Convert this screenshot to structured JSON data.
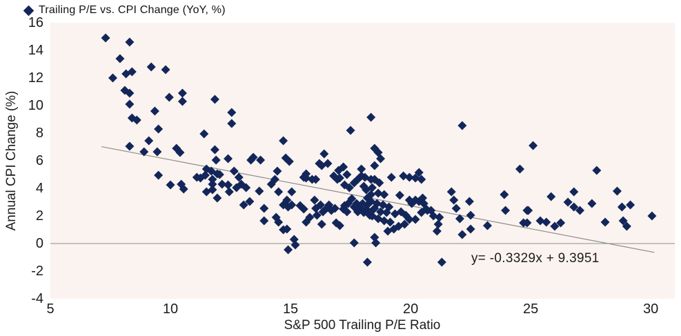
{
  "colors": {
    "marker": "#13265a",
    "plot_bg": "#faf3ef",
    "page_bg": "#ffffff",
    "line": "#8c8c8c",
    "text": "#1c1c1c"
  },
  "chart_data": {
    "type": "scatter",
    "title": "Trailing P/E vs. CPI Change (YoY, %)",
    "xlabel": "S&P 500 Trailing P/E Ratio",
    "ylabel": "Annual CPI Change (%)",
    "xlim": [
      5,
      31
    ],
    "ylim": [
      -4,
      16
    ],
    "xticks": [
      5,
      10,
      15,
      20,
      25,
      30
    ],
    "yticks": [
      16,
      14,
      12,
      10,
      8,
      6,
      4,
      2,
      0,
      -2,
      -4
    ],
    "grid": "zero-line-only",
    "legend_position": "top-left",
    "trendline": {
      "slope": -0.3329,
      "intercept": 9.3951,
      "x_start": 7.13,
      "x_end": 30.15,
      "label": "y= -0.3329x + 9.3951"
    },
    "points": [
      [
        7.3,
        14.9
      ],
      [
        8.3,
        14.6
      ],
      [
        7.9,
        13.4
      ],
      [
        9.2,
        12.8
      ],
      [
        9.8,
        12.6
      ],
      [
        8.15,
        12.3
      ],
      [
        8.4,
        12.45
      ],
      [
        7.6,
        12.0
      ],
      [
        8.1,
        11.1
      ],
      [
        8.3,
        10.9
      ],
      [
        9.95,
        10.6
      ],
      [
        10.5,
        10.9
      ],
      [
        10.5,
        10.3
      ],
      [
        8.3,
        10.1
      ],
      [
        9.35,
        9.6
      ],
      [
        8.4,
        9.1
      ],
      [
        8.6,
        8.95
      ],
      [
        9.5,
        8.3
      ],
      [
        11.4,
        7.95
      ],
      [
        9.1,
        7.45
      ],
      [
        8.3,
        7.05
      ],
      [
        8.9,
        6.65
      ],
      [
        9.45,
        6.65
      ],
      [
        10.25,
        6.9
      ],
      [
        10.4,
        6.6
      ],
      [
        11.85,
        6.8
      ],
      [
        11.9,
        6.05
      ],
      [
        9.5,
        4.95
      ],
      [
        10.0,
        4.25
      ],
      [
        10.45,
        4.3
      ],
      [
        10.55,
        3.95
      ],
      [
        11.1,
        4.8
      ],
      [
        11.45,
        4.95
      ],
      [
        11.5,
        3.75
      ],
      [
        11.75,
        4.3
      ],
      [
        11.25,
        4.75
      ],
      [
        11.5,
        5.4
      ],
      [
        12.05,
        5.0
      ],
      [
        12.65,
        5.25
      ],
      [
        12.85,
        4.8
      ],
      [
        11.85,
        10.45
      ],
      [
        12.55,
        9.5
      ],
      [
        12.55,
        8.7
      ],
      [
        14.7,
        7.45
      ],
      [
        17.5,
        8.2
      ],
      [
        18.35,
        9.15
      ],
      [
        12.4,
        6.15
      ],
      [
        13.35,
        6.05
      ],
      [
        13.45,
        6.25
      ],
      [
        13.75,
        6.05
      ],
      [
        14.8,
        6.2
      ],
      [
        14.95,
        5.95
      ],
      [
        16.4,
        6.5
      ],
      [
        16.2,
        5.8
      ],
      [
        16.55,
        5.8
      ],
      [
        16.3,
        5.65
      ],
      [
        17.2,
        5.55
      ],
      [
        18.5,
        6.9
      ],
      [
        18.65,
        6.6
      ],
      [
        18.75,
        6.15
      ],
      [
        11.7,
        5.25
      ],
      [
        11.95,
        5.05
      ],
      [
        11.75,
        4.65
      ],
      [
        12.15,
        4.3
      ],
      [
        12.4,
        4.25
      ],
      [
        12.45,
        3.75
      ],
      [
        11.75,
        3.9
      ],
      [
        11.95,
        3.3
      ],
      [
        12.75,
        4.05
      ],
      [
        12.95,
        4.3
      ],
      [
        13.15,
        4.05
      ],
      [
        13.05,
        2.8
      ],
      [
        13.3,
        3.05
      ],
      [
        13.7,
        3.8
      ],
      [
        13.9,
        2.55
      ],
      [
        13.9,
        1.65
      ],
      [
        14.2,
        4.3
      ],
      [
        14.35,
        4.65
      ],
      [
        14.45,
        5.25
      ],
      [
        14.5,
        3.75
      ],
      [
        14.7,
        2.8
      ],
      [
        14.85,
        3.15
      ],
      [
        14.9,
        2.65
      ],
      [
        15.05,
        3.75
      ],
      [
        15.05,
        2.8
      ],
      [
        14.4,
        1.9
      ],
      [
        14.5,
        1.55
      ],
      [
        14.7,
        1.0
      ],
      [
        14.85,
        1.05
      ],
      [
        15.15,
        0.3
      ],
      [
        14.9,
        -0.45
      ],
      [
        15.2,
        -0.1
      ],
      [
        15.55,
        4.8
      ],
      [
        15.65,
        5.05
      ],
      [
        15.4,
        2.75
      ],
      [
        15.55,
        2.5
      ],
      [
        15.65,
        1.55
      ],
      [
        15.8,
        1.9
      ],
      [
        15.9,
        4.65
      ],
      [
        16.0,
        3.15
      ],
      [
        16.05,
        2.55
      ],
      [
        16.1,
        2.05
      ],
      [
        16.25,
        2.8
      ],
      [
        16.3,
        1.4
      ],
      [
        16.35,
        2.3
      ],
      [
        16.5,
        2.55
      ],
      [
        16.6,
        2.8
      ],
      [
        16.7,
        2.4
      ],
      [
        16.85,
        2.55
      ],
      [
        16.9,
        1.5
      ],
      [
        17.05,
        1.3
      ],
      [
        17.2,
        2.5
      ],
      [
        17.25,
        2.75
      ],
      [
        17.35,
        2.3
      ],
      [
        17.4,
        2.9
      ],
      [
        17.55,
        3.25
      ],
      [
        17.65,
        2.65
      ],
      [
        17.75,
        2.9
      ],
      [
        17.8,
        2.3
      ],
      [
        17.9,
        2.55
      ],
      [
        18.0,
        2.9
      ],
      [
        18.05,
        2.25
      ],
      [
        18.15,
        2.5
      ],
      [
        18.2,
        2.8
      ],
      [
        18.3,
        2.05
      ],
      [
        18.35,
        2.3
      ],
      [
        17.65,
        0.05
      ],
      [
        18.2,
        -1.35
      ],
      [
        16.8,
        4.9
      ],
      [
        16.95,
        4.65
      ],
      [
        17.0,
        5.3
      ],
      [
        17.35,
        5.0
      ],
      [
        17.25,
        4.25
      ],
      [
        17.45,
        4.05
      ],
      [
        17.65,
        4.4
      ],
      [
        17.8,
        4.65
      ],
      [
        17.95,
        4.9
      ],
      [
        18.05,
        4.15
      ],
      [
        18.15,
        3.9
      ],
      [
        18.2,
        3.3
      ],
      [
        18.35,
        3.55
      ],
      [
        16.05,
        4.65
      ],
      [
        17.05,
        4.75
      ],
      [
        17.95,
        5.4
      ],
      [
        18.1,
        4.8
      ],
      [
        18.35,
        4.65
      ],
      [
        15.65,
        4.75
      ],
      [
        18.5,
        5.65
      ],
      [
        18.5,
        4.65
      ],
      [
        18.7,
        4.4
      ],
      [
        19.2,
        4.8
      ],
      [
        19.7,
        4.9
      ],
      [
        20.35,
        5.15
      ],
      [
        20.45,
        4.65
      ],
      [
        19.95,
        4.8
      ],
      [
        20.2,
        4.75
      ],
      [
        18.4,
        4.05
      ],
      [
        18.65,
        3.65
      ],
      [
        18.9,
        3.55
      ],
      [
        18.35,
        3.05
      ],
      [
        18.6,
        2.9
      ],
      [
        18.85,
        2.8
      ],
      [
        19.1,
        2.65
      ],
      [
        18.5,
        2.55
      ],
      [
        18.75,
        2.3
      ],
      [
        19.0,
        2.25
      ],
      [
        18.4,
        2.0
      ],
      [
        18.65,
        1.8
      ],
      [
        18.9,
        1.65
      ],
      [
        19.15,
        1.55
      ],
      [
        19.35,
        2.15
      ],
      [
        19.55,
        3.5
      ],
      [
        19.6,
        2.3
      ],
      [
        19.8,
        2.05
      ],
      [
        19.95,
        3.15
      ],
      [
        20.05,
        2.9
      ],
      [
        20.2,
        3.15
      ],
      [
        20.35,
        3.05
      ],
      [
        20.5,
        3.3
      ],
      [
        20.55,
        2.9
      ],
      [
        20.45,
        2.25
      ],
      [
        20.2,
        1.75
      ],
      [
        19.95,
        1.75
      ],
      [
        19.75,
        1.4
      ],
      [
        19.5,
        1.25
      ],
      [
        19.3,
        1.05
      ],
      [
        19.05,
        0.9
      ],
      [
        18.55,
        0.05
      ],
      [
        18.5,
        0.45
      ],
      [
        20.65,
        2.5
      ],
      [
        20.7,
        2.4
      ],
      [
        20.85,
        2.4
      ],
      [
        20.95,
        2.0
      ],
      [
        21.1,
        0.9
      ],
      [
        21.15,
        1.4
      ],
      [
        21.2,
        1.9
      ],
      [
        21.7,
        3.75
      ],
      [
        21.8,
        3.15
      ],
      [
        21.9,
        2.55
      ],
      [
        22.05,
        1.8
      ],
      [
        22.15,
        0.65
      ],
      [
        22.45,
        3.05
      ],
      [
        22.5,
        2.05
      ],
      [
        22.5,
        1.05
      ],
      [
        23.2,
        1.3
      ],
      [
        23.9,
        3.55
      ],
      [
        23.95,
        2.4
      ],
      [
        24.55,
        5.4
      ],
      [
        24.85,
        2.4
      ],
      [
        24.85,
        1.5
      ],
      [
        21.3,
        -1.35
      ],
      [
        22.15,
        8.55
      ],
      [
        25.1,
        7.1
      ],
      [
        27.75,
        5.3
      ],
      [
        25.85,
        3.4
      ],
      [
        26.8,
        3.75
      ],
      [
        26.55,
        3.0
      ],
      [
        26.8,
        2.65
      ],
      [
        27.05,
        2.4
      ],
      [
        27.55,
        2.9
      ],
      [
        28.6,
        3.8
      ],
      [
        28.8,
        2.65
      ],
      [
        29.15,
        2.8
      ],
      [
        24.9,
        2.4
      ],
      [
        24.7,
        1.5
      ],
      [
        25.4,
        1.65
      ],
      [
        25.65,
        1.55
      ],
      [
        26.0,
        1.25
      ],
      [
        26.25,
        1.5
      ],
      [
        28.1,
        1.55
      ],
      [
        28.85,
        1.65
      ],
      [
        29.0,
        1.25
      ],
      [
        30.05,
        2.0
      ]
    ]
  }
}
